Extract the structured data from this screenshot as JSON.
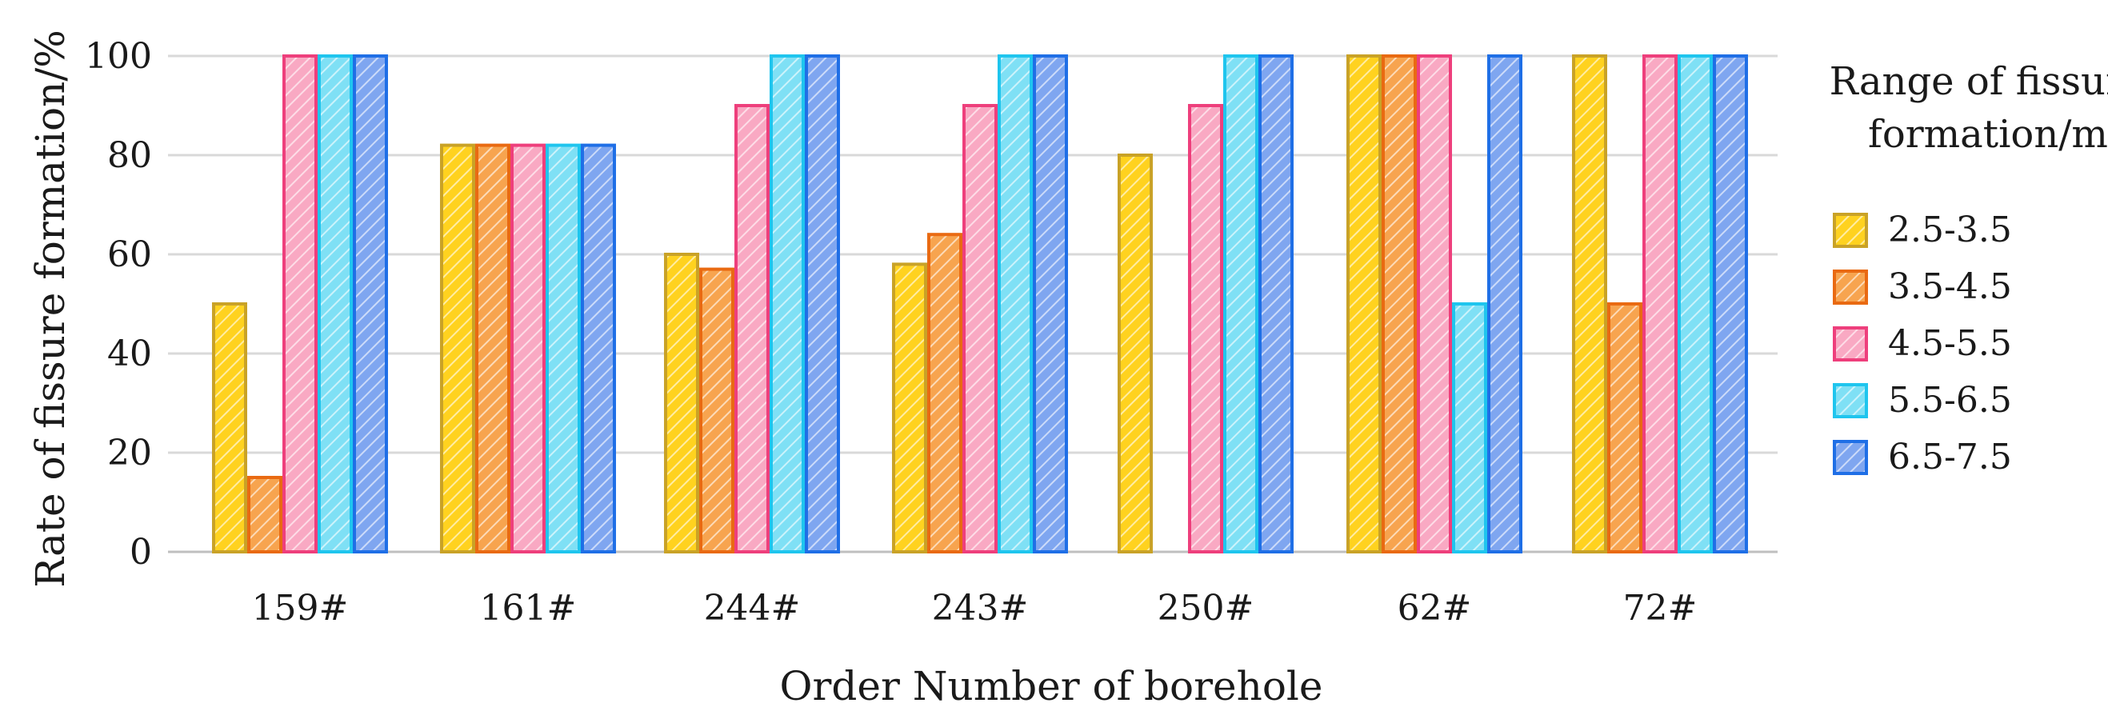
{
  "chart_data": {
    "type": "bar",
    "xlabel": "Order Number of borehole",
    "ylabel": "Rate of fissure formation/%",
    "ylim": [
      0,
      100
    ],
    "yticks": [
      0,
      20,
      40,
      60,
      80,
      100
    ],
    "grid": true,
    "legend_title_lines": [
      "Range of fissure",
      "formation/m"
    ],
    "legend_position": "right",
    "categories": [
      "159#",
      "161#",
      "244#",
      "243#",
      "250#",
      "62#",
      "72#"
    ],
    "series": [
      {
        "name": "2.5-3.5",
        "fill": "#FFD21F",
        "stroke": "#C9A227",
        "values": [
          50,
          82,
          60,
          58,
          80,
          100,
          100
        ]
      },
      {
        "name": "3.5-4.5",
        "fill": "#F7A44F",
        "stroke": "#E96A12",
        "values": [
          15,
          82,
          57,
          64,
          0,
          100,
          50
        ]
      },
      {
        "name": "4.5-5.5",
        "fill": "#F9A9C3",
        "stroke": "#EE3F7C",
        "values": [
          100,
          82,
          90,
          90,
          90,
          100,
          100
        ]
      },
      {
        "name": "5.5-6.5",
        "fill": "#7FE0F5",
        "stroke": "#1FC5EE",
        "values": [
          100,
          82,
          100,
          100,
          100,
          50,
          100
        ]
      },
      {
        "name": "6.5-7.5",
        "fill": "#7FA6F0",
        "stroke": "#1F6FE6",
        "values": [
          100,
          82,
          100,
          100,
          100,
          100,
          100
        ]
      }
    ]
  }
}
